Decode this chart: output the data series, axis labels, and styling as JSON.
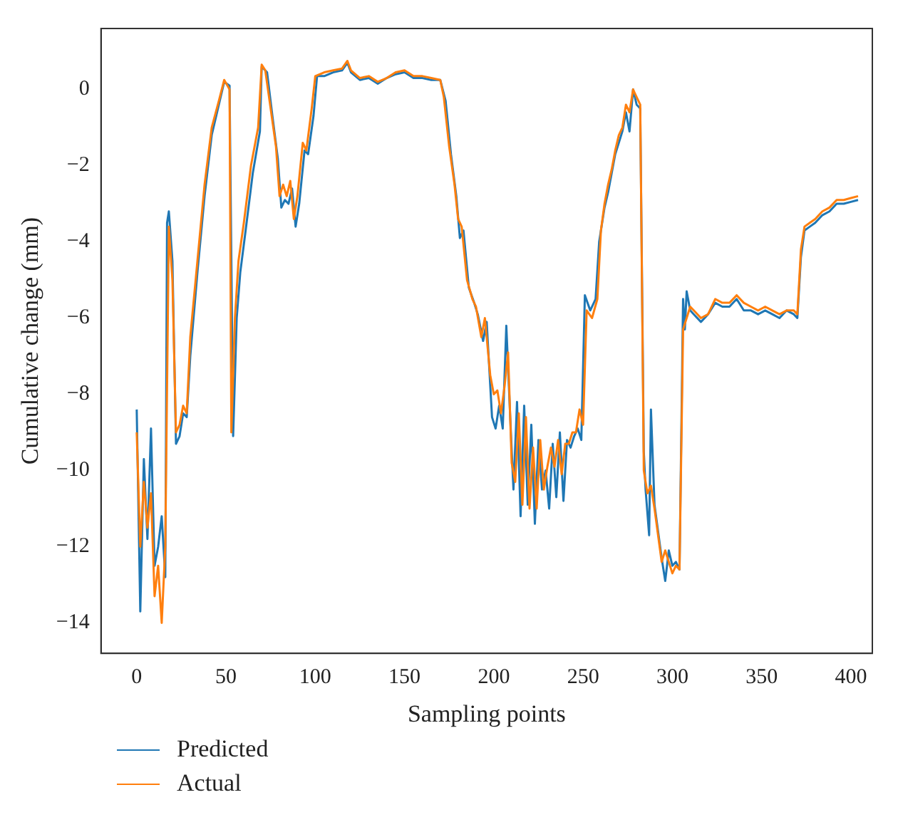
{
  "chart_data": {
    "type": "line",
    "xlabel": "Sampling points",
    "ylabel": "Cumulative change (mm)",
    "xlim": [
      -20,
      412
    ],
    "ylim": [
      -14.8,
      1.6
    ],
    "xticks": [
      0,
      50,
      100,
      150,
      200,
      250,
      300,
      350,
      400
    ],
    "yticks": [
      -14,
      -12,
      -10,
      -8,
      -6,
      -4,
      -2,
      0
    ],
    "grid": false,
    "legend": "bottom left",
    "marker": "none",
    "line_style": "solid",
    "series": [
      {
        "name": "Predicted",
        "color": "#1f77b4",
        "x": [
          0,
          2,
          4,
          6,
          8,
          10,
          12,
          14,
          16,
          17,
          18,
          20,
          22,
          24,
          26,
          28,
          30,
          34,
          38,
          42,
          46,
          49,
          52,
          54,
          56,
          58,
          61,
          65,
          69,
          70,
          73,
          76,
          79,
          81,
          83,
          85,
          87,
          89,
          91,
          94,
          96,
          99,
          101,
          105,
          110,
          115,
          118,
          120,
          125,
          130,
          135,
          140,
          145,
          150,
          155,
          160,
          165,
          170,
          173,
          176,
          179,
          181,
          183,
          186,
          189,
          191,
          194,
          196,
          199,
          201,
          203,
          205,
          207,
          209,
          211,
          213,
          215,
          217,
          219,
          221,
          223,
          225,
          227,
          229,
          231,
          233,
          235,
          237,
          239,
          241,
          243,
          245,
          247,
          249,
          251,
          254,
          257,
          259,
          262,
          264,
          266,
          268,
          270,
          272,
          274,
          276,
          278,
          280,
          282,
          284,
          285,
          287,
          288,
          290,
          294,
          296,
          298,
          300,
          302,
          304,
          306,
          307,
          308,
          310,
          312,
          316,
          320,
          324,
          328,
          332,
          336,
          340,
          344,
          348,
          352,
          356,
          360,
          364,
          368,
          370,
          372,
          374,
          377,
          380,
          384,
          388,
          392,
          396,
          400,
          404
        ],
        "values": [
          -8.4,
          -13.7,
          -9.7,
          -11.8,
          -8.9,
          -12.5,
          -12.0,
          -11.2,
          -12.8,
          -3.5,
          -3.2,
          -4.5,
          -9.3,
          -9.1,
          -8.5,
          -8.6,
          -7.0,
          -4.8,
          -2.8,
          -1.2,
          -0.4,
          0.2,
          0.1,
          -9.1,
          -6.0,
          -4.8,
          -3.7,
          -2.2,
          -1.1,
          0.6,
          0.45,
          -0.7,
          -1.8,
          -3.1,
          -2.9,
          -3.0,
          -2.6,
          -3.6,
          -3.0,
          -1.6,
          -1.7,
          -0.7,
          0.35,
          0.35,
          0.45,
          0.5,
          0.7,
          0.45,
          0.25,
          0.3,
          0.15,
          0.3,
          0.4,
          0.45,
          0.3,
          0.3,
          0.25,
          0.25,
          -0.3,
          -1.7,
          -2.8,
          -3.9,
          -3.7,
          -5.2,
          -5.6,
          -5.9,
          -6.6,
          -6.1,
          -8.6,
          -8.9,
          -8.3,
          -8.9,
          -6.2,
          -8.4,
          -10.5,
          -8.2,
          -11.2,
          -8.3,
          -10.9,
          -8.8,
          -11.4,
          -9.2,
          -10.5,
          -10.0,
          -11.0,
          -9.3,
          -10.7,
          -9.0,
          -10.8,
          -9.2,
          -9.4,
          -9.1,
          -8.9,
          -9.2,
          -5.4,
          -5.8,
          -5.5,
          -4.0,
          -3.1,
          -2.7,
          -2.2,
          -1.7,
          -1.4,
          -1.1,
          -0.6,
          -1.1,
          0.0,
          -0.4,
          -0.5,
          -9.5,
          -10.5,
          -11.7,
          -8.4,
          -10.9,
          -12.3,
          -12.9,
          -12.1,
          -12.5,
          -12.4,
          -12.6,
          -5.5,
          -6.3,
          -5.3,
          -5.8,
          -5.9,
          -6.1,
          -5.9,
          -5.6,
          -5.7,
          -5.7,
          -5.5,
          -5.8,
          -5.8,
          -5.9,
          -5.8,
          -5.9,
          -6.0,
          -5.8,
          -5.9,
          -6.0,
          -4.4,
          -3.7,
          -3.6,
          -3.5,
          -3.3,
          -3.2,
          -3.0,
          -3.0,
          -2.95,
          -2.9
        ]
      },
      {
        "name": "Actual",
        "color": "#ff7f0e",
        "x": [
          0,
          2,
          4,
          6,
          8,
          10,
          12,
          14,
          16,
          18,
          20,
          22,
          24,
          26,
          28,
          30,
          34,
          38,
          42,
          46,
          49,
          52,
          53,
          55,
          57,
          60,
          64,
          68,
          70,
          72,
          75,
          78,
          80,
          82,
          84,
          86,
          88,
          90,
          93,
          95,
          98,
          100,
          105,
          110,
          115,
          118,
          120,
          125,
          130,
          135,
          140,
          145,
          150,
          155,
          160,
          165,
          170,
          172,
          175,
          178,
          180,
          182,
          185,
          188,
          190,
          193,
          195,
          198,
          200,
          202,
          204,
          206,
          208,
          210,
          212,
          214,
          216,
          218,
          220,
          222,
          224,
          226,
          228,
          230,
          232,
          234,
          236,
          238,
          240,
          242,
          244,
          246,
          248,
          250,
          252,
          255,
          258,
          260,
          262,
          264,
          266,
          268,
          270,
          272,
          274,
          276,
          278,
          280,
          282,
          284,
          286,
          288,
          290,
          294,
          296,
          298,
          300,
          302,
          304,
          306,
          308,
          310,
          312,
          316,
          320,
          324,
          328,
          332,
          336,
          340,
          344,
          348,
          352,
          356,
          360,
          364,
          368,
          370,
          372,
          374,
          377,
          380,
          384,
          388,
          392,
          396,
          400,
          404
        ],
        "values": [
          -9.0,
          -12.0,
          -10.3,
          -11.5,
          -10.6,
          -13.3,
          -12.5,
          -14.0,
          -12.0,
          -3.6,
          -5.0,
          -9.0,
          -8.8,
          -8.3,
          -8.5,
          -6.5,
          -4.5,
          -2.5,
          -1.0,
          -0.3,
          0.25,
          0.0,
          -9.0,
          -6.0,
          -4.5,
          -3.5,
          -2.0,
          -1.0,
          0.65,
          0.5,
          -0.5,
          -1.5,
          -2.8,
          -2.5,
          -2.8,
          -2.4,
          -3.4,
          -2.8,
          -1.4,
          -1.6,
          -0.5,
          0.35,
          0.45,
          0.5,
          0.55,
          0.75,
          0.5,
          0.3,
          0.35,
          0.2,
          0.3,
          0.45,
          0.5,
          0.35,
          0.35,
          0.3,
          0.25,
          -0.2,
          -1.5,
          -2.5,
          -3.4,
          -3.6,
          -5.0,
          -5.5,
          -5.7,
          -6.5,
          -6.0,
          -7.5,
          -8.0,
          -7.9,
          -8.5,
          -7.8,
          -6.9,
          -9.8,
          -10.3,
          -8.5,
          -10.9,
          -8.6,
          -11.0,
          -9.4,
          -11.0,
          -9.2,
          -10.5,
          -9.9,
          -9.4,
          -9.9,
          -9.2,
          -10.1,
          -9.3,
          -9.3,
          -9.0,
          -9.0,
          -8.4,
          -8.8,
          -5.8,
          -6.0,
          -5.5,
          -3.7,
          -3.0,
          -2.5,
          -2.1,
          -1.6,
          -1.2,
          -1.0,
          -0.4,
          -0.6,
          0.0,
          -0.2,
          -0.4,
          -10.0,
          -10.6,
          -10.4,
          -11.0,
          -12.4,
          -12.1,
          -12.4,
          -12.7,
          -12.5,
          -12.6,
          -6.3,
          -6.0,
          -5.7,
          -5.8,
          -6.0,
          -5.9,
          -5.5,
          -5.6,
          -5.6,
          -5.4,
          -5.6,
          -5.7,
          -5.8,
          -5.7,
          -5.8,
          -5.9,
          -5.8,
          -5.8,
          -5.9,
          -4.2,
          -3.6,
          -3.5,
          -3.4,
          -3.2,
          -3.1,
          -2.9,
          -2.9,
          -2.85,
          -2.8
        ]
      }
    ]
  }
}
